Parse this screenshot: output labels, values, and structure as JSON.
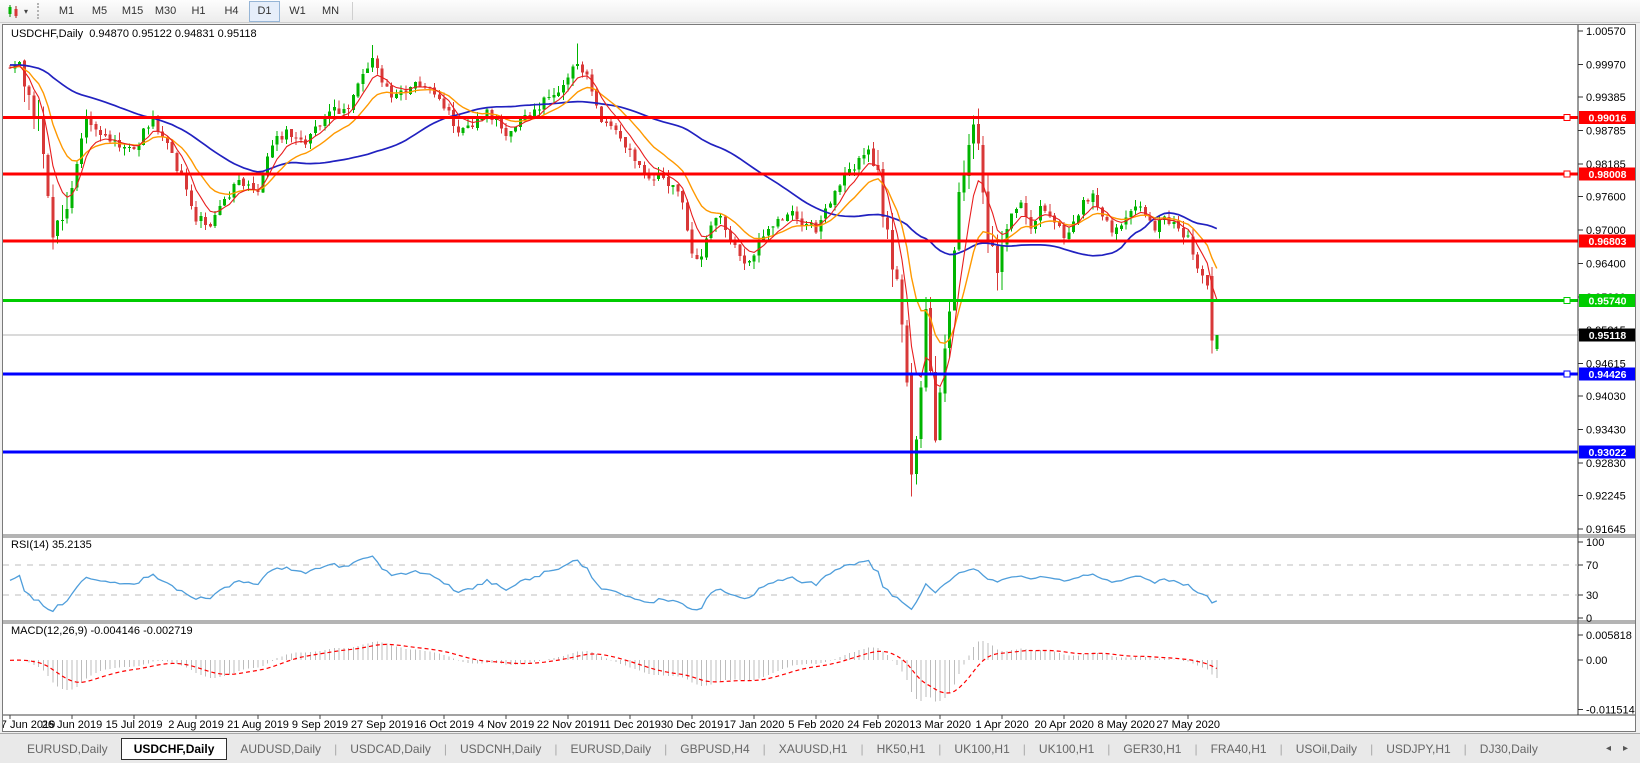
{
  "toolbar": {
    "timeframes": [
      "M1",
      "M5",
      "M15",
      "M30",
      "H1",
      "H4",
      "D1",
      "W1",
      "MN"
    ],
    "active_timeframe": "D1"
  },
  "chart": {
    "title_text": "USDCHF,Daily  0.94870 0.95122 0.94831 0.95118",
    "symbol": "USDCHF,Daily",
    "price_axis_labels": [
      "1.00570",
      "0.99970",
      "0.99385",
      "0.98785",
      "0.98185",
      "0.97600",
      "0.97000",
      "0.96400",
      "0.95800",
      "0.95215",
      "0.94615",
      "0.94030",
      "0.93430",
      "0.92830",
      "0.92245",
      "0.91645"
    ],
    "time_axis_labels": [
      "7 Jun 2019",
      "26 Jun 2019",
      "15 Jul 2019",
      "2 Aug 2019",
      "21 Aug 2019",
      "9 Sep 2019",
      "27 Sep 2019",
      "16 Oct 2019",
      "4 Nov 2019",
      "22 Nov 2019",
      "11 Dec 2019",
      "30 Dec 2019",
      "17 Jan 2020",
      "5 Feb 2020",
      "24 Feb 2020",
      "13 Mar 2020",
      "1 Apr 2020",
      "20 Apr 2020",
      "8 May 2020",
      "27 May 2020"
    ]
  },
  "rsi": {
    "label": "RSI(14) 35.2135",
    "value": 35.2135,
    "scale": [
      [
        "100",
        100
      ],
      [
        "70",
        70
      ],
      [
        "30",
        30
      ],
      [
        "0",
        0
      ]
    ],
    "upper_level": 70,
    "lower_level": 30
  },
  "macd": {
    "label": "MACD(12,26,9) -0.004146 -0.002719",
    "macd_value": -0.004146,
    "signal_value": -0.002719,
    "scale": [
      [
        "0.005818",
        0.005818
      ],
      [
        "0.00",
        0
      ],
      [
        "-0.011514",
        -0.011514
      ]
    ]
  },
  "tabs": {
    "items": [
      {
        "label": "EURUSD,Daily",
        "active": false
      },
      {
        "label": "USDCHF,Daily",
        "active": true
      },
      {
        "label": "AUDUSD,Daily",
        "active": false
      },
      {
        "label": "USDCAD,Daily",
        "active": false
      },
      {
        "label": "USDCNH,Daily",
        "active": false
      },
      {
        "label": "EURUSD,Daily",
        "active": false
      },
      {
        "label": "GBPUSD,H4",
        "active": false
      },
      {
        "label": "XAUUSD,H1",
        "active": false
      },
      {
        "label": "HK50,H1",
        "active": false
      },
      {
        "label": "UK100,H1",
        "active": false
      },
      {
        "label": "UK100,H1",
        "active": false
      },
      {
        "label": "GER30,H1",
        "active": false
      },
      {
        "label": "FRA40,H1",
        "active": false
      },
      {
        "label": "USOil,Daily",
        "active": false
      },
      {
        "label": "USDJPY,H1",
        "active": false
      },
      {
        "label": "DJ30,Daily",
        "active": false
      }
    ],
    "scroll_left": "◂",
    "scroll_right": "▸"
  },
  "colors": {
    "candle_up": "#00b400",
    "candle_down": "#d83838",
    "ma_fast": "#e81e1e",
    "ma_mid": "#ff9900",
    "ma_slow": "#2121c0",
    "rsi_line": "#4f9edb",
    "rsi_dash": "#bdbdbd",
    "macd_hist": "#bdbdbd",
    "macd_signal": "#ff0000",
    "bid_line": "#b4b4b4",
    "bid_label_bg": "#000000",
    "level_red": "#ff0000",
    "level_green": "#00cc00",
    "level_blue": "#0000ff"
  },
  "chart_data": {
    "type": "candlestick",
    "symbol": "USDCHF",
    "timeframe": "Daily",
    "current_ohlc": {
      "open": 0.9487,
      "high": 0.95122,
      "low": 0.94831,
      "close": 0.95118
    },
    "price_range": {
      "top": 1.0057,
      "bottom": 0.91645
    },
    "visible_bars": 254,
    "prehistory_bars": 60,
    "date_ticks_every_bars": 13,
    "levels": [
      {
        "label": "0.99016",
        "price": 0.99016,
        "color": "#ff0000",
        "marker": true
      },
      {
        "label": "0.98008",
        "price": 0.98008,
        "color": "#ff0000",
        "marker": true
      },
      {
        "label": "0.96803",
        "price": 0.96803,
        "color": "#ff0000",
        "marker": false
      },
      {
        "label": "0.95740",
        "price": 0.9574,
        "color": "#00cc00",
        "marker": true
      },
      {
        "label": "0.94426",
        "price": 0.94426,
        "color": "#0000ff",
        "marker": true
      },
      {
        "label": "0.93022",
        "price": 0.93022,
        "color": "#0000ff",
        "marker": false
      }
    ],
    "bid": {
      "label": "0.95118",
      "price": 0.95118
    },
    "overlays": [
      {
        "name": "ma_fast",
        "method": "ema",
        "period": 6,
        "color": "#e81e1e",
        "width": 1.1
      },
      {
        "name": "ma_mid",
        "method": "ema",
        "period": 14,
        "color": "#ff9900",
        "width": 1.4
      },
      {
        "name": "ma_slow",
        "method": "sma",
        "period": 45,
        "color": "#2121c0",
        "width": 1.7
      }
    ],
    "indicators": [
      {
        "name": "RSI",
        "period": 14,
        "current": 35.2135
      },
      {
        "name": "MACD",
        "fast": 12,
        "slow": 26,
        "signal": 9,
        "current_macd": -0.004146,
        "current_signal": -0.002719
      }
    ],
    "anchors": [
      [
        -60,
        0.9955
      ],
      [
        -45,
        0.999
      ],
      [
        -30,
        1.001
      ],
      [
        -15,
        0.9985
      ],
      [
        -5,
        0.9992
      ],
      [
        0,
        0.9992
      ],
      [
        2,
        0.9999
      ],
      [
        4,
        0.9945
      ],
      [
        6,
        0.99
      ],
      [
        8,
        0.976
      ],
      [
        9,
        0.9705
      ],
      [
        11,
        0.9725
      ],
      [
        13,
        0.9775
      ],
      [
        16,
        0.9902
      ],
      [
        19,
        0.9872
      ],
      [
        22,
        0.9858
      ],
      [
        26,
        0.9842
      ],
      [
        28,
        0.9876
      ],
      [
        30,
        0.99
      ],
      [
        33,
        0.9856
      ],
      [
        36,
        0.9794
      ],
      [
        39,
        0.9722
      ],
      [
        42,
        0.9712
      ],
      [
        45,
        0.9748
      ],
      [
        48,
        0.979
      ],
      [
        52,
        0.9774
      ],
      [
        55,
        0.9852
      ],
      [
        58,
        0.988
      ],
      [
        62,
        0.9862
      ],
      [
        65,
        0.9895
      ],
      [
        68,
        0.9912
      ],
      [
        71,
        0.992
      ],
      [
        74,
        0.9978
      ],
      [
        76,
        1.0005
      ],
      [
        78,
        0.9962
      ],
      [
        80,
        0.9935
      ],
      [
        83,
        0.9945
      ],
      [
        86,
        0.9965
      ],
      [
        89,
        0.9942
      ],
      [
        91,
        0.9925
      ],
      [
        94,
        0.9872
      ],
      [
        97,
        0.9882
      ],
      [
        100,
        0.9908
      ],
      [
        102,
        0.9892
      ],
      [
        104,
        0.987
      ],
      [
        107,
        0.9897
      ],
      [
        110,
        0.9914
      ],
      [
        113,
        0.9937
      ],
      [
        116,
        0.996
      ],
      [
        119,
        1.0
      ],
      [
        121,
        0.9972
      ],
      [
        124,
        0.9902
      ],
      [
        127,
        0.9882
      ],
      [
        130,
        0.9842
      ],
      [
        133,
        0.9806
      ],
      [
        136,
        0.9792
      ],
      [
        139,
        0.9786
      ],
      [
        141,
        0.9746
      ],
      [
        143,
        0.9662
      ],
      [
        145,
        0.9645
      ],
      [
        147,
        0.9716
      ],
      [
        149,
        0.9722
      ],
      [
        152,
        0.9672
      ],
      [
        154,
        0.9638
      ],
      [
        156,
        0.9652
      ],
      [
        158,
        0.9696
      ],
      [
        161,
        0.9716
      ],
      [
        164,
        0.9729
      ],
      [
        166,
        0.9712
      ],
      [
        169,
        0.97
      ],
      [
        171,
        0.9732
      ],
      [
        174,
        0.9786
      ],
      [
        177,
        0.9813
      ],
      [
        180,
        0.9842
      ],
      [
        182,
        0.9792
      ],
      [
        184,
        0.9686
      ],
      [
        186,
        0.961
      ],
      [
        188,
        0.942
      ],
      [
        189,
        0.9262
      ],
      [
        190,
        0.933
      ],
      [
        191,
        0.942
      ],
      [
        192,
        0.956
      ],
      [
        193,
        0.944
      ],
      [
        194,
        0.933
      ],
      [
        195,
        0.9408
      ],
      [
        196,
        0.9488
      ],
      [
        197,
        0.9565
      ],
      [
        198,
        0.965
      ],
      [
        199,
        0.9755
      ],
      [
        200,
        0.9808
      ],
      [
        201,
        0.9868
      ],
      [
        202,
        0.988
      ],
      [
        203,
        0.9838
      ],
      [
        204,
        0.978
      ],
      [
        205,
        0.9692
      ],
      [
        206,
        0.9652
      ],
      [
        207,
        0.9632
      ],
      [
        208,
        0.9662
      ],
      [
        210,
        0.9732
      ],
      [
        212,
        0.9755
      ],
      [
        214,
        0.9706
      ],
      [
        216,
        0.9736
      ],
      [
        218,
        0.9726
      ],
      [
        221,
        0.9686
      ],
      [
        223,
        0.9722
      ],
      [
        225,
        0.9746
      ],
      [
        227,
        0.9762
      ],
      [
        229,
        0.9722
      ],
      [
        231,
        0.9696
      ],
      [
        234,
        0.9724
      ],
      [
        236,
        0.9748
      ],
      [
        238,
        0.9732
      ],
      [
        240,
        0.9704
      ],
      [
        242,
        0.9722
      ],
      [
        244,
        0.9714
      ],
      [
        246,
        0.9692
      ],
      [
        247,
        0.9686
      ],
      [
        248,
        0.9662
      ],
      [
        249,
        0.9632
      ],
      [
        250,
        0.9612
      ],
      [
        251,
        0.9594
      ],
      [
        252,
        0.9565
      ],
      [
        253,
        0.9512
      ]
    ],
    "forced_bars": {
      "76": {
        "h": 1.0032
      },
      "119": {
        "h": 1.0035
      },
      "189": {
        "o": 0.9445,
        "c": 0.9262,
        "l": 0.9223,
        "h": 0.9462
      },
      "252": {
        "o": 0.9618,
        "c": 0.9502,
        "l": 0.9479,
        "h": 0.9634
      },
      "253": {
        "o": 0.9487,
        "h": 0.95122,
        "l": 0.94831,
        "c": 0.95118
      }
    },
    "high_vol_windows": [
      [
        3,
        12
      ],
      [
        182,
        208
      ]
    ]
  }
}
